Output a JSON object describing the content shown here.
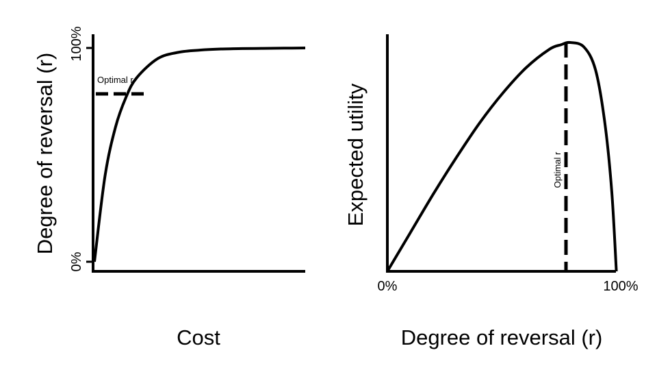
{
  "chart_data": [
    {
      "type": "line",
      "xlabel": "Cost",
      "ylabel": "Degree of reversal (r)",
      "y_tick_labels": [
        "0%",
        "100%"
      ],
      "ylim": [
        0,
        100
      ],
      "xlim": [
        0,
        1
      ],
      "grid": false,
      "annotation": {
        "label": "Optimal r",
        "y": 79,
        "x_end": 0.24,
        "style": "dashed-horizontal"
      },
      "series": [
        {
          "x": [
            0,
            0.05,
            0.1,
            0.15,
            0.2,
            0.3,
            0.4,
            0.5,
            0.6,
            0.7,
            0.8,
            0.9,
            1.0
          ],
          "values": [
            0,
            40,
            63,
            77,
            86,
            95,
            98,
            99,
            99.5,
            99.7,
            99.8,
            99.9,
            100
          ]
        }
      ]
    },
    {
      "type": "line",
      "xlabel": "Degree of reversal (r)",
      "ylabel": "Expected utility",
      "x_tick_labels": [
        "0%",
        "100%"
      ],
      "xlim": [
        0,
        100
      ],
      "ylim": [
        0,
        1
      ],
      "grid": false,
      "annotation": {
        "label": "Optimal r",
        "x": 79,
        "style": "dashed-vertical"
      },
      "series": [
        {
          "x": [
            0,
            10,
            20,
            30,
            40,
            50,
            60,
            70,
            75,
            79,
            85,
            90,
            94,
            97,
            99
          ],
          "values": [
            0,
            0.17,
            0.34,
            0.5,
            0.65,
            0.78,
            0.89,
            0.97,
            0.99,
            1.0,
            0.98,
            0.88,
            0.65,
            0.35,
            0
          ]
        }
      ]
    }
  ]
}
